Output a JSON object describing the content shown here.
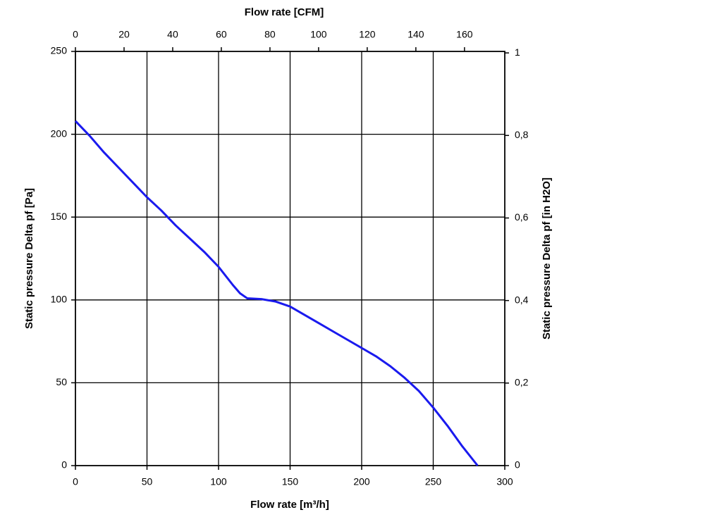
{
  "chart_data": {
    "type": "line",
    "xlabel": "Flow rate [m³/h]",
    "x2label": "Flow rate [CFM]",
    "ylabel": "Static pressure Delta pf [Pa]",
    "y2label": "Static pressure Delta pf [in H2O]",
    "xlim": [
      0,
      300
    ],
    "xticks": [
      0,
      50,
      100,
      150,
      200,
      250,
      300
    ],
    "x2lim": [
      0,
      176.57
    ],
    "x2ticks": [
      0,
      20,
      40,
      60,
      80,
      100,
      120,
      140,
      160
    ],
    "ylim": [
      0,
      250
    ],
    "yticks": [
      0,
      50,
      100,
      150,
      200,
      250
    ],
    "y2lim": [
      0,
      1.0036
    ],
    "y2ticks": [
      0,
      {
        "value": 0.2,
        "label": "0,2"
      },
      {
        "value": 0.4,
        "label": "0,4"
      },
      {
        "value": 0.6,
        "label": "0,6"
      },
      {
        "value": 0.8,
        "label": "0,8"
      },
      1
    ],
    "grid": true,
    "series": [
      {
        "color": "#1a1aee",
        "x": [
          0,
          10,
          20,
          30,
          40,
          50,
          60,
          70,
          80,
          90,
          100,
          110,
          115,
          120,
          130,
          140,
          150,
          160,
          170,
          180,
          190,
          200,
          210,
          220,
          230,
          240,
          250,
          260,
          270,
          281
        ],
        "values": [
          208,
          199,
          189,
          180,
          171,
          162,
          154,
          145,
          137,
          129,
          120,
          109,
          104,
          101,
          100.5,
          99,
          96,
          91,
          86,
          81,
          76,
          71,
          66,
          60,
          53,
          45,
          35,
          24,
          12,
          0
        ]
      }
    ]
  }
}
